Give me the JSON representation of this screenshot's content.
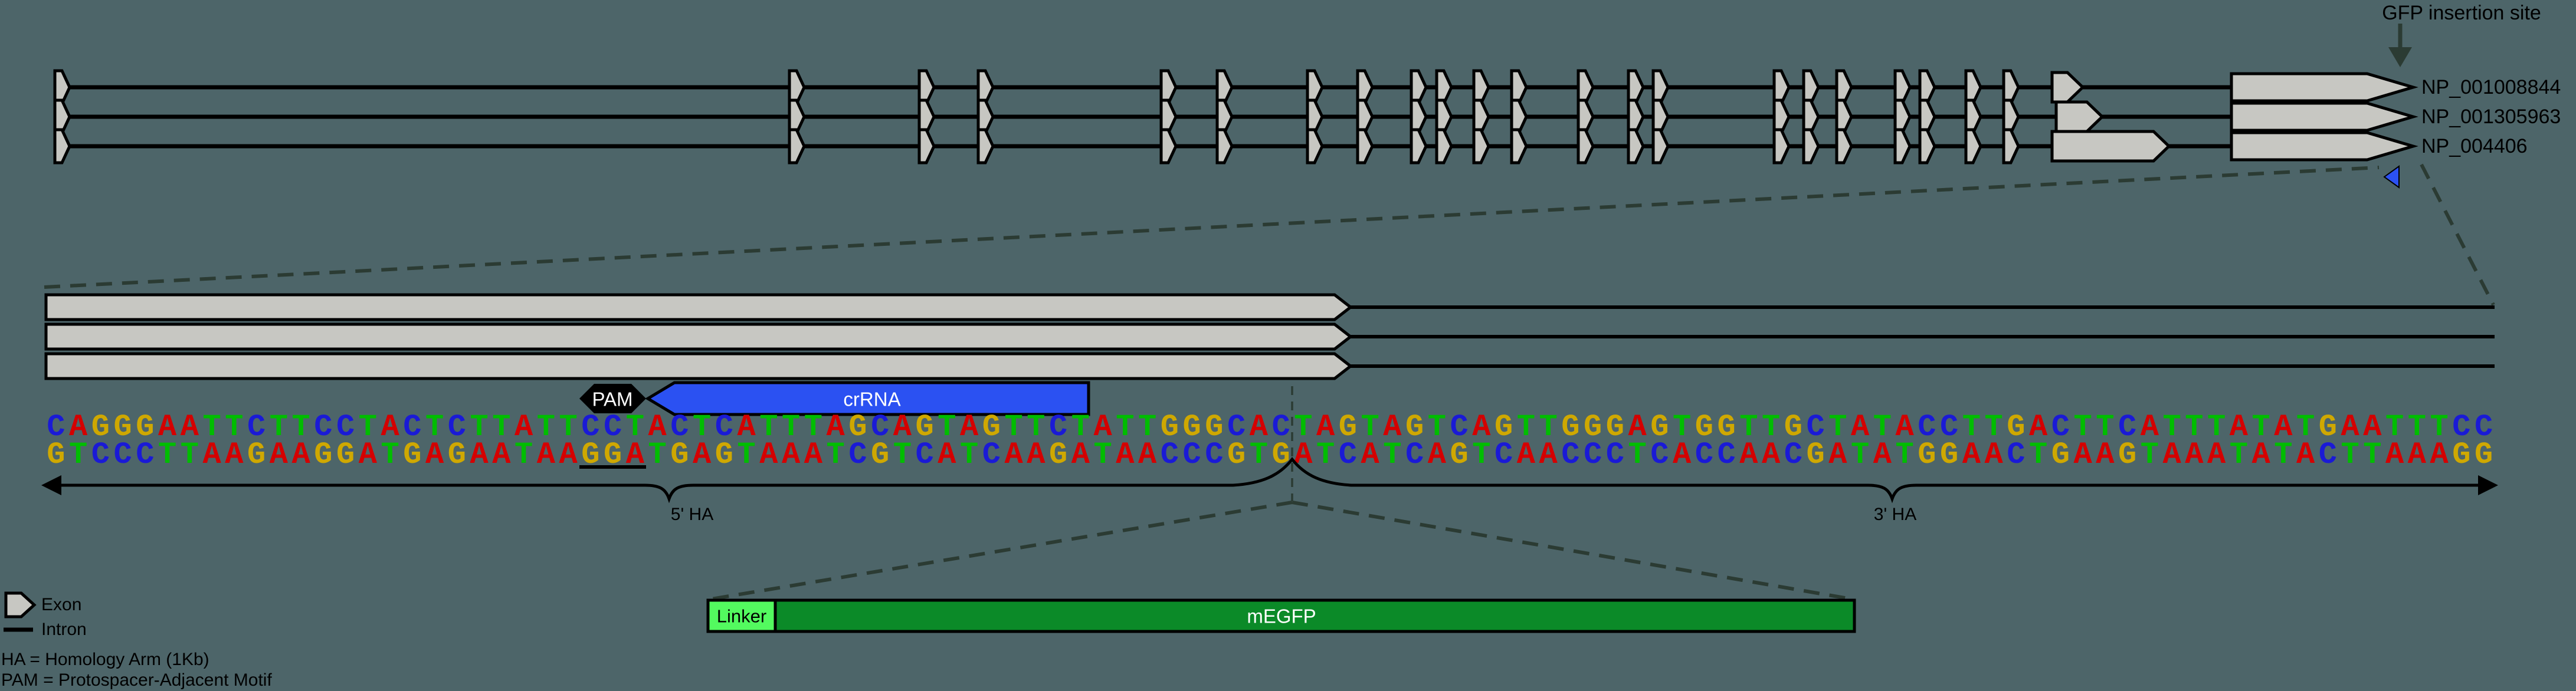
{
  "colors": {
    "background": "#4d6569",
    "exon_fill": "#c7c7c2",
    "dashed_line": "#2b3b33",
    "crrna_blue": "#2b51f2",
    "pam_black": "#000000",
    "linker_green": "#53fa5f",
    "megfp_green": "#0b8a28",
    "base_A": "#d40000",
    "base_T": "#00bd00",
    "base_G": "#cfa800",
    "base_C": "#1a1ad6"
  },
  "gene_model": {
    "gfp_insertion_label": "GFP insertion site",
    "transcripts": [
      {
        "name": "NP_001008844",
        "penultimate_exon": [
          3478,
          3530
        ]
      },
      {
        "name": "NP_001305963",
        "penultimate_exon": [
          3485,
          3563
        ]
      },
      {
        "name": "NP_004406",
        "penultimate_exon": [
          3478,
          3676
        ]
      }
    ],
    "exon_x": [
      105,
      1350,
      1570,
      1670,
      1980,
      2075,
      2228,
      2313,
      2404,
      2447,
      2510,
      2574,
      2687,
      2772,
      2814,
      3019,
      3069,
      3125,
      3224,
      3266,
      3344,
      3408
    ],
    "final_exon": [
      3782,
      4090
    ]
  },
  "zoom_view": {
    "pam_label": "PAM",
    "crrna_label": "crRNA",
    "top_strand": "CAGGGAATTCTTCCTACTCTTATTCCTACTCATTTAGCAGTAGTTCTATTGGGCACTAGTAGTCAGTTGGGAGTGGTTGCTATACCTTGACTTCATTTATATGAATTTCC",
    "bottom_strand": "GTCCCTTAAGAAGGATGAGAATAAGGATGAGTAAATCGTCATCAAGATAACCCGTGATCATCAGTCAACCCTCACCAACGATATGGAACTGAAGTAAATATACTTAAAGG",
    "five_prime_ha_label": "5' HA",
    "three_prime_ha_label": "3' HA"
  },
  "insert_construct": {
    "linker_label": "Linker",
    "megfp_label": "mEGFP"
  },
  "legend": {
    "exon_label": "Exon",
    "intron_label": "Intron",
    "ha_definition": "HA = Homology Arm (1Kb)",
    "pam_definition": "PAM = Protospacer-Adjacent Motif"
  }
}
